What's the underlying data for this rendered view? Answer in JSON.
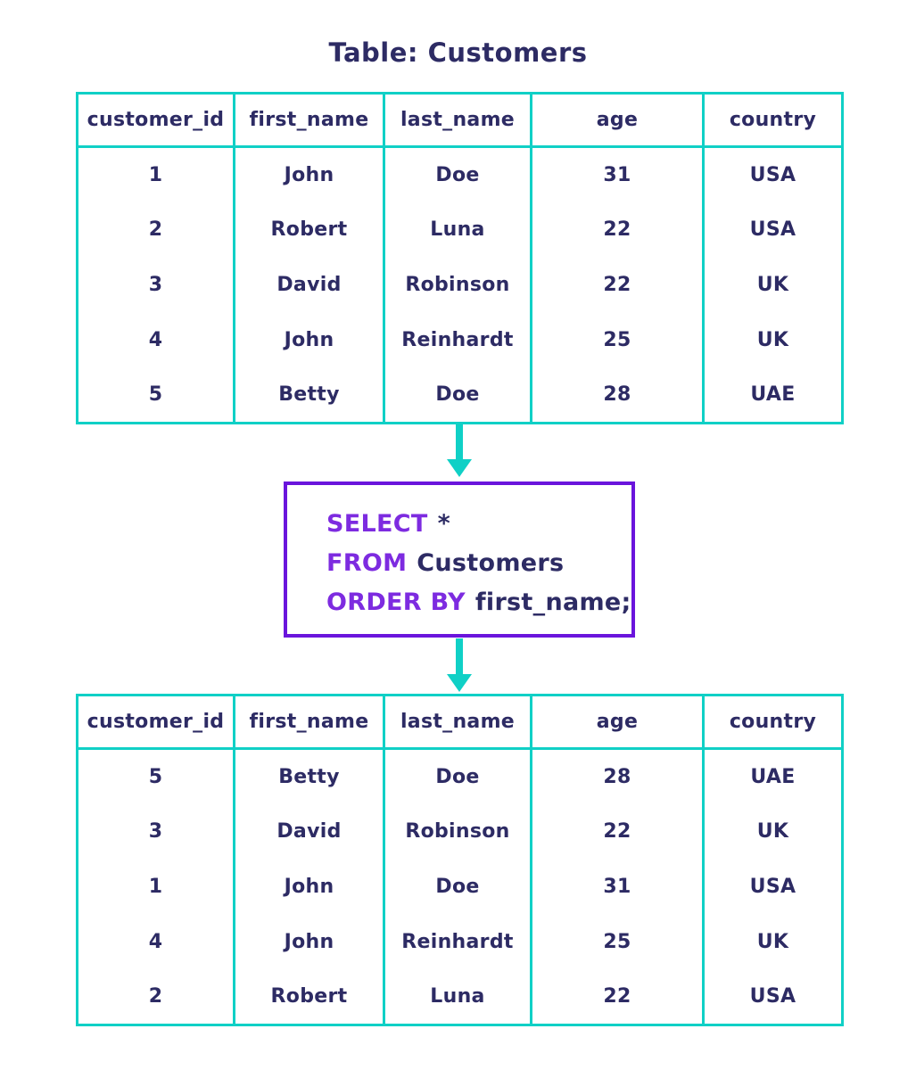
{
  "title": "Table: Customers",
  "colors": {
    "background": "#ffffff",
    "table_border_teal": "#10d0c6",
    "text_navy": "#2d2b64",
    "keyword_purple": "#7d2be0",
    "query_box_border_purple": "#6a14dc",
    "arrow_teal": "#10d0c6"
  },
  "table_columns": [
    "customer_id",
    "first_name",
    "last_name",
    "age",
    "country"
  ],
  "source_table": {
    "rows": [
      [
        "1",
        "John",
        "Doe",
        "31",
        "USA"
      ],
      [
        "2",
        "Robert",
        "Luna",
        "22",
        "USA"
      ],
      [
        "3",
        "David",
        "Robinson",
        "22",
        "UK"
      ],
      [
        "4",
        "John",
        "Reinhardt",
        "25",
        "UK"
      ],
      [
        "5",
        "Betty",
        "Doe",
        "28",
        "UAE"
      ]
    ]
  },
  "query": {
    "lines": [
      {
        "keyword": "SELECT",
        "rest": "*"
      },
      {
        "keyword": "FROM",
        "rest": "Customers"
      },
      {
        "keyword": "ORDER BY",
        "rest": "first_name;"
      }
    ]
  },
  "result_table": {
    "rows": [
      [
        "5",
        "Betty",
        "Doe",
        "28",
        "UAE"
      ],
      [
        "3",
        "David",
        "Robinson",
        "22",
        "UK"
      ],
      [
        "1",
        "John",
        "Doe",
        "31",
        "USA"
      ],
      [
        "4",
        "John",
        "Reinhardt",
        "25",
        "UK"
      ],
      [
        "2",
        "Robert",
        "Luna",
        "22",
        "USA"
      ]
    ]
  },
  "icons": {
    "arrow1": "down-arrow",
    "arrow2": "down-arrow"
  }
}
